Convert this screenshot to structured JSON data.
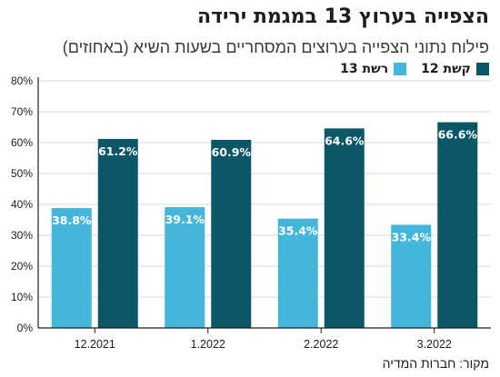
{
  "title": "הצפייה בערוץ 13 במגמת ירידה",
  "subtitle": "פילוח נתוני הצפייה בערוצים המסחריים בשעות השיא (באחוזים)",
  "source": "מקור: חברות המדיה",
  "colors": {
    "series_13": "#44b6dc",
    "series_12": "#0c5767",
    "axis": "#1d1d1b",
    "grid": "#d9d9d9"
  },
  "chart_data": {
    "type": "bar",
    "categories": [
      "12.2021",
      "1.2022",
      "2.2022",
      "3.2022"
    ],
    "series": [
      {
        "name": "רשת 13",
        "values": [
          38.8,
          39.1,
          35.4,
          33.4
        ],
        "labels": [
          "38.8%",
          "39.1%",
          "35.4%",
          "33.4%"
        ],
        "color": "#44b6dc"
      },
      {
        "name": "קשת 12",
        "values": [
          61.2,
          60.9,
          64.6,
          66.6
        ],
        "labels": [
          "61.2%",
          "60.9%",
          "64.6%",
          "66.6%"
        ],
        "color": "#0c5767"
      }
    ],
    "yticks": [
      "0%",
      "10%",
      "20%",
      "30%",
      "40%",
      "50%",
      "60%",
      "70%",
      "80%"
    ],
    "ylim": [
      0,
      80
    ],
    "grid": true,
    "legend": "top-right"
  }
}
